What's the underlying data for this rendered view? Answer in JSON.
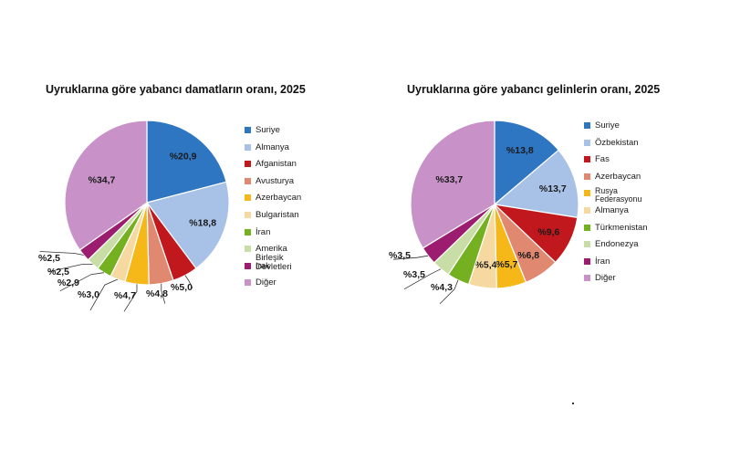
{
  "chart_data": [
    {
      "type": "pie",
      "title": "Uyruklarına göre yabancı damatların oranı, 2025",
      "categories": [
        "Suriye",
        "Almanya",
        "Afganistan",
        "Avusturya",
        "Azerbaycan",
        "Bulgaristan",
        "İran",
        "Amerika Birleşik Devletleri",
        "Irak",
        "Diğer"
      ],
      "values": [
        20.9,
        18.8,
        5.0,
        4.8,
        4.7,
        3.0,
        2.9,
        2.5,
        2.5,
        34.7
      ],
      "labels": [
        "%20,9",
        "%18,8",
        "%5,0",
        "%4,8",
        "%4,7",
        "%3,0",
        "%2,9",
        "%2,5",
        "%2,5",
        "%34,7"
      ],
      "colors": [
        "#2E75C2",
        "#A8C1E6",
        "#C0181C",
        "#E08870",
        "#F5B818",
        "#F6D9A0",
        "#74B020",
        "#C9DEA6",
        "#9C1D6F",
        "#C892C8"
      ],
      "legend_position": "right"
    },
    {
      "type": "pie",
      "title": "Uyruklarına göre yabancı gelinlerin oranı, 2025",
      "categories": [
        "Suriye",
        "Özbekistan",
        "Fas",
        "Azerbaycan",
        "Rusya\nFederasyonu",
        "Almanya",
        "Türkmenistan",
        "Endonezya",
        "İran",
        "Diğer"
      ],
      "values": [
        13.8,
        13.7,
        9.6,
        6.8,
        5.7,
        5.4,
        4.3,
        3.5,
        3.5,
        33.7
      ],
      "labels": [
        "%13,8",
        "%13,7",
        "%9,6",
        "%6,8",
        "%5,7",
        "%5,4",
        "%4,3",
        "%3,5",
        "%3,5",
        "%33,7"
      ],
      "colors": [
        "#2E75C2",
        "#A8C1E6",
        "#C0181C",
        "#E08870",
        "#F5B818",
        "#F6D9A0",
        "#74B020",
        "#C9DEA6",
        "#9C1D6F",
        "#C892C8"
      ],
      "legend_position": "right"
    }
  ]
}
